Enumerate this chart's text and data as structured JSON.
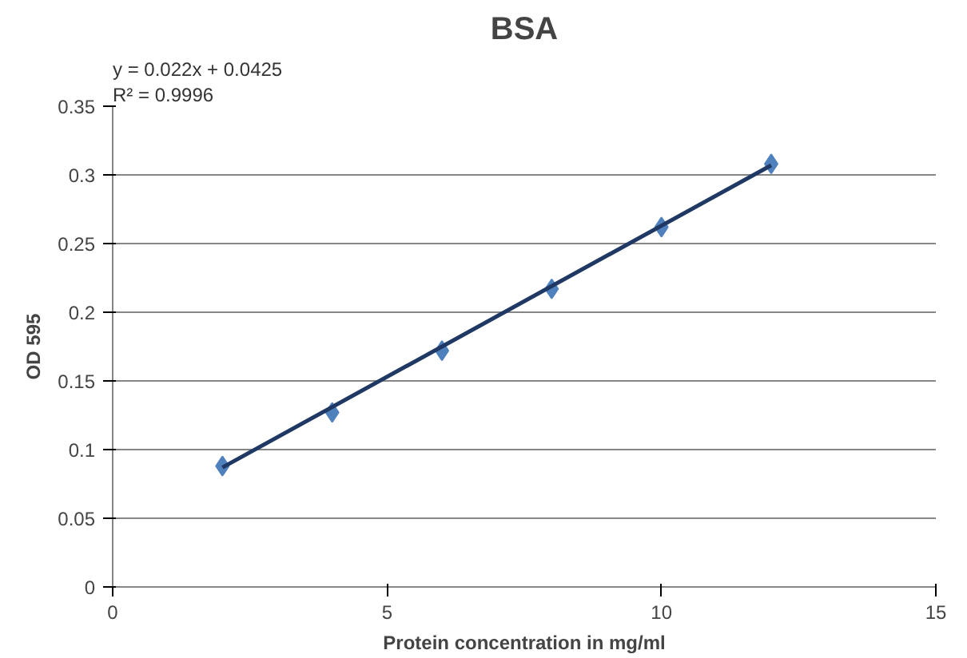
{
  "chart_data": {
    "type": "scatter",
    "title": "BSA",
    "xlabel": "Protein concentration in mg/ml",
    "ylabel": "OD 595",
    "annotations": [
      "y = 0.022x + 0.0425",
      "R² = 0.9996"
    ],
    "series": [
      {
        "color": "#4f81bd",
        "x": [
          2,
          4,
          6,
          8,
          10,
          12
        ],
        "values": [
          0.088,
          0.127,
          0.172,
          0.217,
          0.262,
          0.308
        ],
        "marker": "diamond"
      },
      {
        "type": "line",
        "color": "#1f3864",
        "x": [
          2,
          12
        ],
        "values": [
          0.087,
          0.307
        ],
        "line_style": "solid"
      }
    ],
    "xlim": [
      0,
      15
    ],
    "ylim": [
      0,
      0.35
    ],
    "xticks": [
      0,
      5,
      10,
      15
    ],
    "yticks": [
      0,
      0.05,
      0.1,
      0.15,
      0.2,
      0.25,
      0.3,
      0.35
    ],
    "grid": "y"
  }
}
